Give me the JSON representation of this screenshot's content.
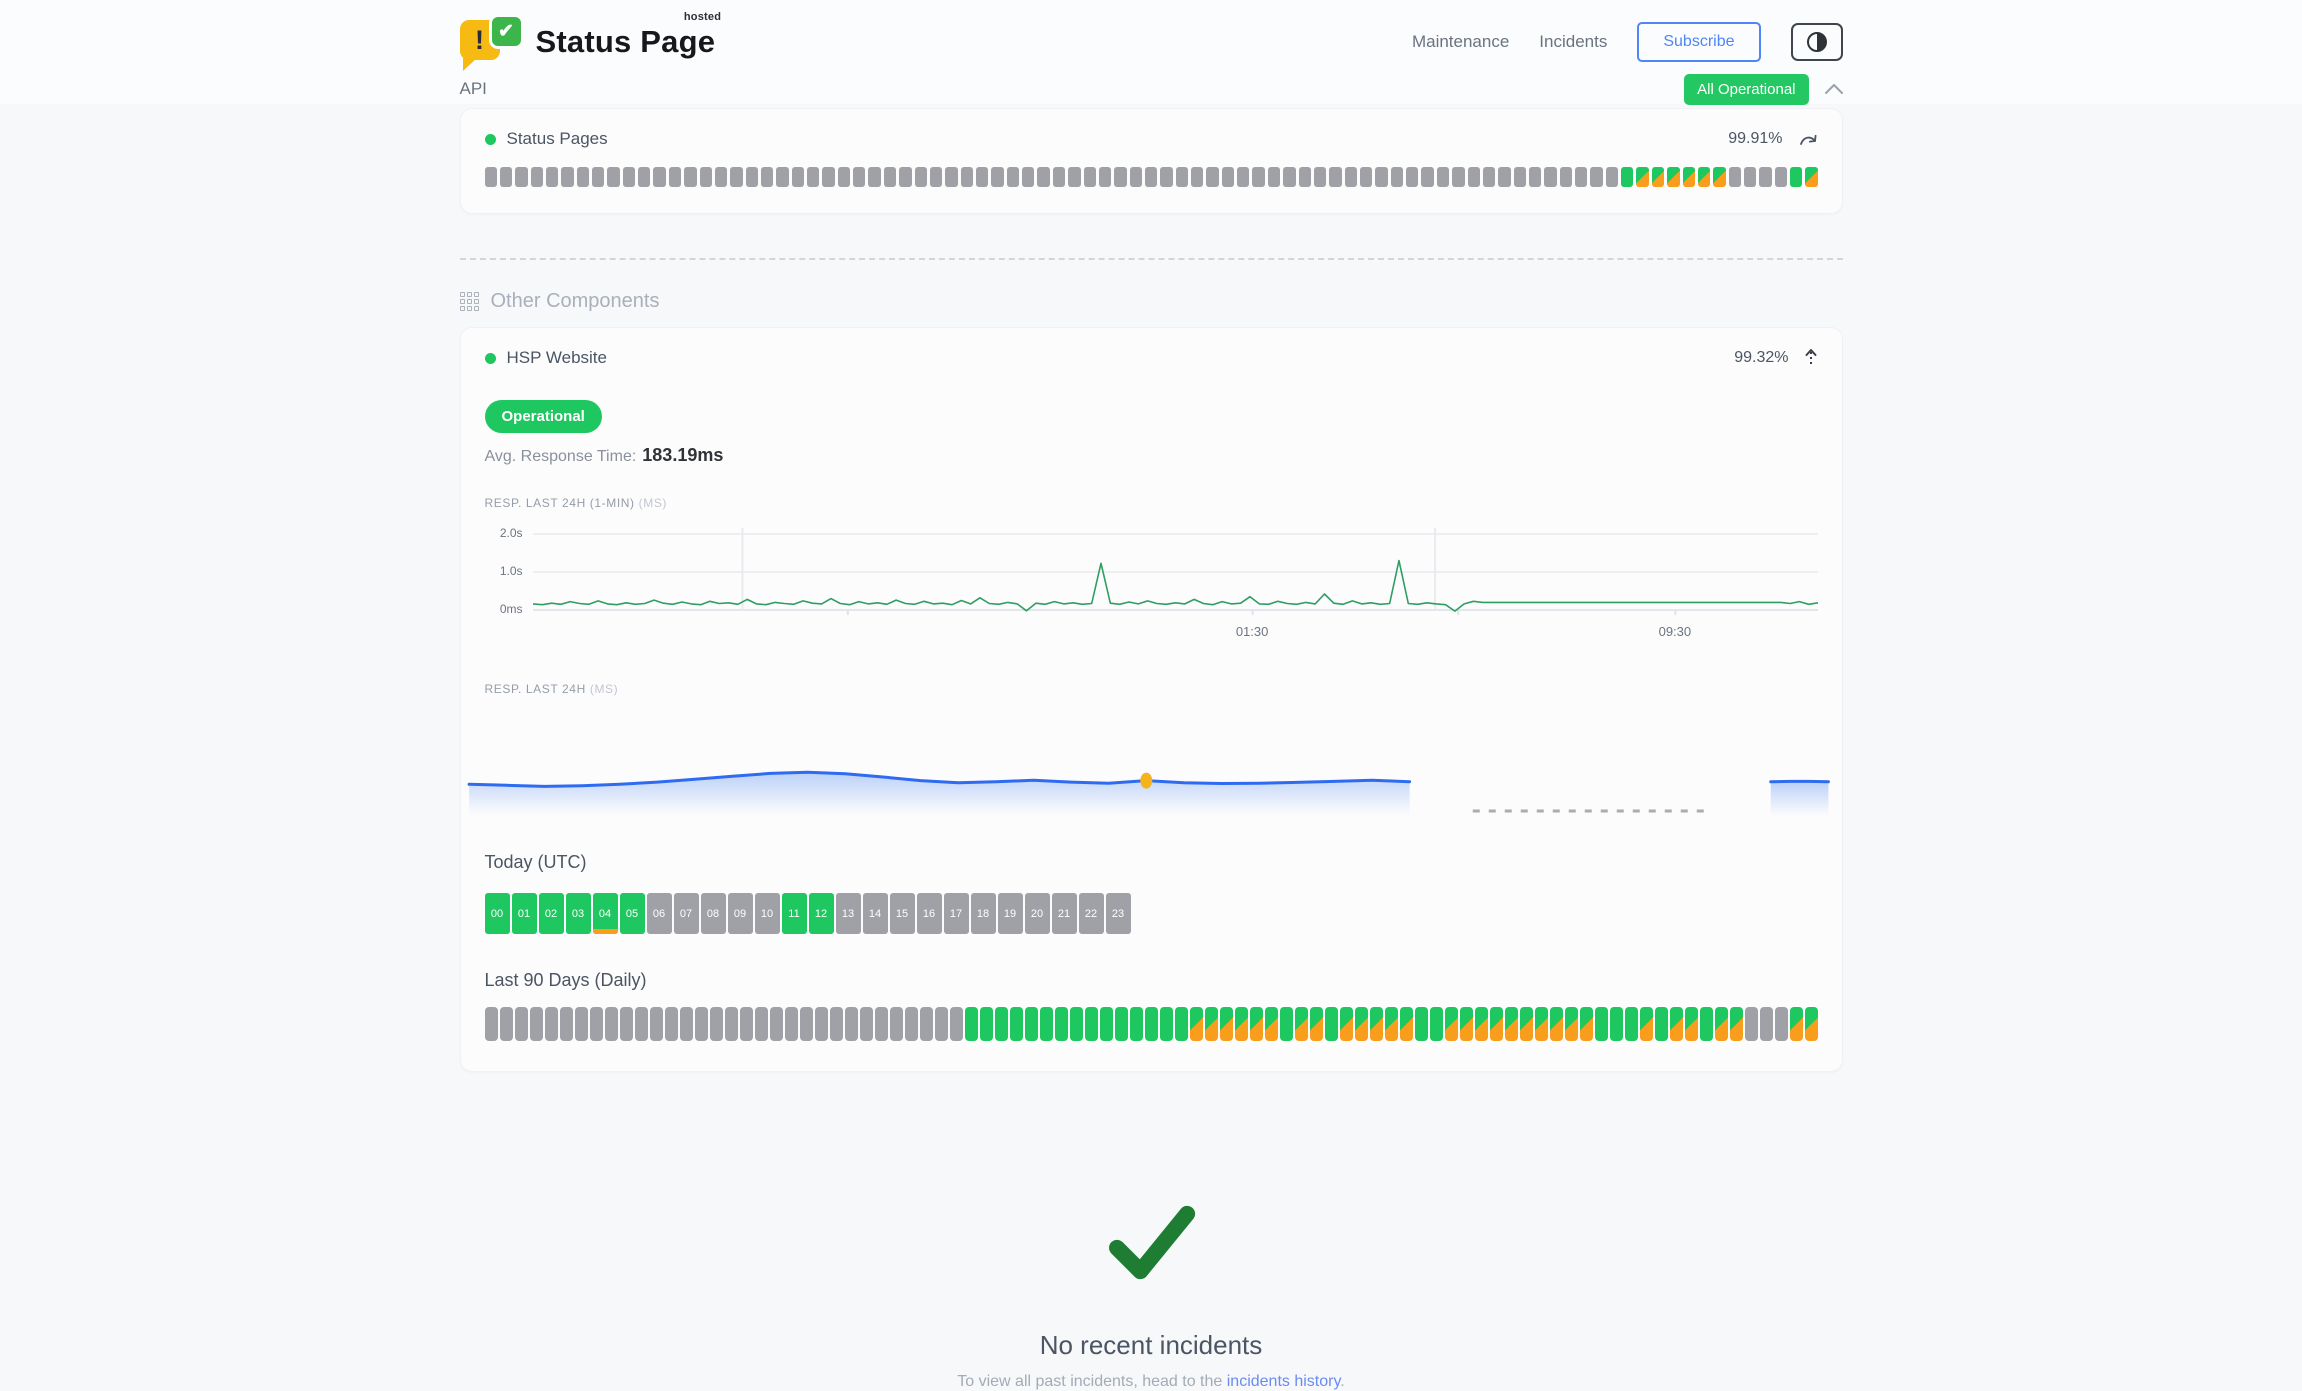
{
  "header": {
    "brand": "Status Page",
    "brand_superscript": "hosted",
    "logo_exclamation": "!",
    "logo_check": "✔",
    "nav": [
      {
        "label": "Maintenance"
      },
      {
        "label": "Incidents"
      }
    ],
    "subscribe_label": "Subscribe",
    "status_badge": "All Operational"
  },
  "api_section": {
    "title": "API",
    "component_name": "Status Pages",
    "uptime": "99.91%",
    "bars_pattern": "ggggggggggggggggggggggggggggggggggggggggggggggggggggggggggggggggggggggggggGSSSSSSggggGS"
  },
  "other_components": {
    "title": "Other Components",
    "component_name": "HSP Website",
    "uptime": "99.32%",
    "status": "Operational",
    "avg_label": "Avg. Response Time:",
    "avg_value": "183.19ms",
    "chart1_label": "RESP. LAST 24H (1-MIN)",
    "chart1_unit": "(MS)",
    "chart2_label": "RESP. LAST 24H",
    "chart2_unit": "(MS)",
    "today_title": "Today (UTC)",
    "last90_title": "Last 90 Days (Daily)",
    "last90_pattern": "ggggggggggggggggggggggggggggggggGGGGGGGGGGGGGGGSSSSSSGSSGSSSSSGGSSSSSSSSSSGGGSGSSGSSgggSS",
    "hours": [
      {
        "label": "00",
        "state": "up"
      },
      {
        "label": "01",
        "state": "up"
      },
      {
        "label": "02",
        "state": "up"
      },
      {
        "label": "03",
        "state": "up"
      },
      {
        "label": "04",
        "state": "up",
        "marker": true
      },
      {
        "label": "05",
        "state": "up"
      },
      {
        "label": "06",
        "state": "na"
      },
      {
        "label": "07",
        "state": "na"
      },
      {
        "label": "08",
        "state": "na"
      },
      {
        "label": "09",
        "state": "na"
      },
      {
        "label": "10",
        "state": "na"
      },
      {
        "label": "11",
        "state": "up"
      },
      {
        "label": "12",
        "state": "up"
      },
      {
        "label": "13",
        "state": "na"
      },
      {
        "label": "14",
        "state": "na"
      },
      {
        "label": "15",
        "state": "na"
      },
      {
        "label": "16",
        "state": "na"
      },
      {
        "label": "17",
        "state": "na"
      },
      {
        "label": "18",
        "state": "na"
      },
      {
        "label": "19",
        "state": "na"
      },
      {
        "label": "20",
        "state": "na"
      },
      {
        "label": "21",
        "state": "na"
      },
      {
        "label": "22",
        "state": "na"
      },
      {
        "label": "23",
        "state": "na"
      }
    ]
  },
  "charts": {
    "resp_1min": {
      "type": "line",
      "unit": "ms",
      "ymax": 2000,
      "yticks": [
        "2.0s",
        "1.0s",
        "0ms"
      ],
      "xticks": [
        {
          "label": "01:30",
          "f": 0.56
        },
        {
          "label": "09:30",
          "f": 0.889
        }
      ],
      "vlines": [
        0.163,
        0.702
      ],
      "base_ticks": [
        0.245,
        0.56,
        0.72,
        0.889
      ],
      "series": [
        160,
        140,
        180,
        150,
        220,
        170,
        150,
        240,
        160,
        140,
        190,
        150,
        170,
        260,
        180,
        150,
        210,
        160,
        140,
        230,
        170,
        190,
        150,
        280,
        160,
        140,
        200,
        170,
        150,
        240,
        180,
        160,
        300,
        170,
        140,
        220,
        160,
        190,
        150,
        260,
        170,
        150,
        230,
        160,
        180,
        140,
        250,
        160,
        320,
        170,
        150,
        200,
        160,
        -20,
        180,
        150,
        220,
        160,
        190,
        150,
        170,
        1230,
        180,
        150,
        210,
        160,
        240,
        170,
        150,
        190,
        160,
        280,
        170,
        140,
        220,
        160,
        180,
        350,
        160,
        150,
        230,
        170,
        150,
        200,
        160,
        420,
        180,
        150,
        240,
        160,
        190,
        150,
        170,
        1300,
        170,
        150,
        190,
        160,
        140,
        -30,
        160,
        230,
        200,
        200,
        200,
        200,
        200,
        200,
        200,
        200,
        200,
        200,
        200,
        200,
        200,
        200,
        200,
        200,
        200,
        200,
        200,
        200,
        200,
        200,
        200,
        200,
        200,
        200,
        200,
        200,
        200,
        200,
        200,
        200,
        200,
        170,
        220,
        150,
        190
      ]
    },
    "resp_24h": {
      "type": "area",
      "unit": "ms",
      "seg1": [
        200,
        197,
        194,
        196,
        200,
        206,
        214,
        222,
        230,
        233,
        229,
        220,
        210,
        204,
        207,
        211,
        206,
        203,
        210,
        204,
        202,
        203,
        205,
        208,
        211,
        207
      ],
      "seg1_span": [
        0.003,
        0.688
      ],
      "dot_index": 18,
      "dash_span": [
        0.734,
        0.905
      ],
      "seg2": [
        207,
        208,
        208,
        207
      ],
      "seg2_span": [
        0.951,
        0.993
      ]
    }
  },
  "incidents": {
    "title": "No recent incidents",
    "sub_prefix": "To view all past incidents, head to the ",
    "link_label": "incidents history",
    "sub_suffix": "."
  },
  "colors": {
    "green": "#1ec75f",
    "badge_green": "#23c863",
    "orange": "#f99d1c",
    "gray_bar": "#9fa1a6",
    "line_green": "#2f9e63",
    "line_blue": "#2e6bf0",
    "dot_yellow": "#f5b41d",
    "link_blue": "#6b8bf2",
    "check_green": "#1e7d32",
    "accent_blue": "#4f86f7"
  }
}
